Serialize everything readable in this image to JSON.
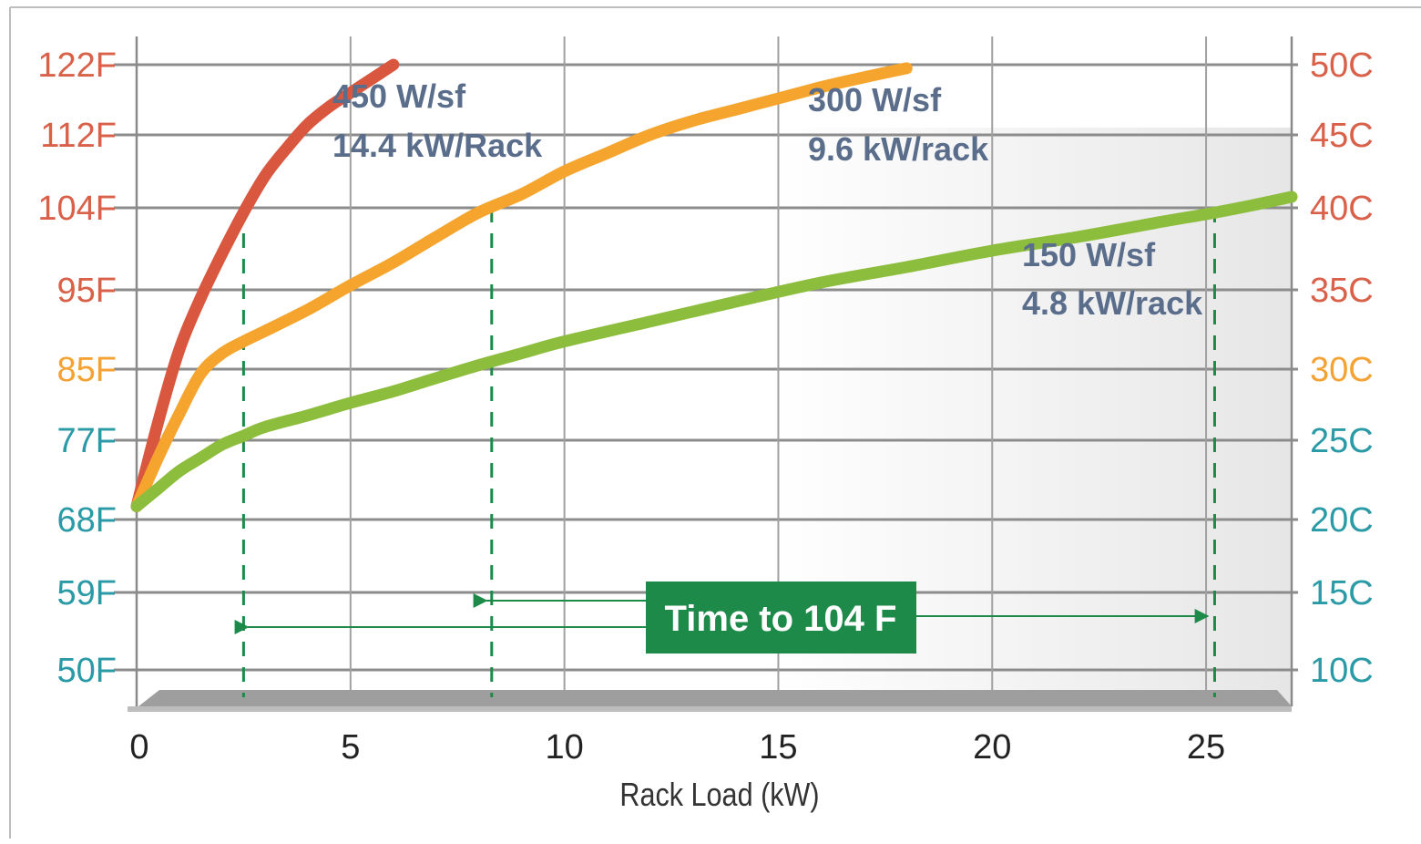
{
  "chart_data": {
    "type": "line",
    "xlabel": "Rack Load (kW)",
    "x_ticks": [
      "0",
      "5",
      "10",
      "15",
      "20",
      "25"
    ],
    "xlim": [
      0,
      27
    ],
    "ylim_F": [
      50,
      122
    ],
    "y_ticks_left": [
      {
        "value": 122,
        "label": "122F",
        "color": "#d9614a"
      },
      {
        "value": 112,
        "label": "112F",
        "color": "#d9614a"
      },
      {
        "value": 104,
        "label": "104F",
        "color": "#d9614a"
      },
      {
        "value": 95,
        "label": "95F",
        "color": "#d9614a"
      },
      {
        "value": 85,
        "label": "85F",
        "color": "#f5a234"
      },
      {
        "value": 77,
        "label": "77F",
        "color": "#2a9aa6"
      },
      {
        "value": 68,
        "label": "68F",
        "color": "#2a9aa6"
      },
      {
        "value": 59,
        "label": "59F",
        "color": "#2a9aa6"
      },
      {
        "value": 50,
        "label": "50F",
        "color": "#2a9aa6"
      }
    ],
    "y_ticks_right": [
      {
        "value": 122,
        "label": "50C",
        "color": "#d9614a"
      },
      {
        "value": 112,
        "label": "45C",
        "color": "#d9614a"
      },
      {
        "value": 104,
        "label": "40C",
        "color": "#d9614a"
      },
      {
        "value": 95,
        "label": "35C",
        "color": "#d9614a"
      },
      {
        "value": 85,
        "label": "30C",
        "color": "#f5a234"
      },
      {
        "value": 77,
        "label": "25C",
        "color": "#2a9aa6"
      },
      {
        "value": 68,
        "label": "20C",
        "color": "#2a9aa6"
      },
      {
        "value": 59,
        "label": "15C",
        "color": "#2a9aa6"
      },
      {
        "value": 50,
        "label": "10C",
        "color": "#2a9aa6"
      }
    ],
    "grid": true,
    "series": [
      {
        "name": "450 W/sf",
        "label_lines": [
          "450 W/sf",
          "14.4 kW/Rack"
        ],
        "color": "#d9573e",
        "points": [
          [
            0,
            69.5
          ],
          [
            0.5,
            79
          ],
          [
            1,
            87.5
          ],
          [
            1.5,
            94
          ],
          [
            2,
            99
          ],
          [
            2.5,
            103.5
          ],
          [
            3,
            107.5
          ],
          [
            3.5,
            110.5
          ],
          [
            4,
            113.5
          ],
          [
            4.5,
            116
          ],
          [
            5,
            118
          ],
          [
            5.5,
            120
          ],
          [
            6,
            122
          ]
        ]
      },
      {
        "name": "300 W/sf",
        "label_lines": [
          "300 W/sf",
          "9.6 kW/rack"
        ],
        "color": "#f5a52e",
        "points": [
          [
            0,
            69.5
          ],
          [
            0.5,
            75
          ],
          [
            1,
            80
          ],
          [
            1.5,
            84.5
          ],
          [
            2,
            87
          ],
          [
            2.5,
            88.5
          ],
          [
            3,
            89.8
          ],
          [
            4,
            92.5
          ],
          [
            5,
            95.5
          ],
          [
            6,
            98
          ],
          [
            7,
            100.8
          ],
          [
            8,
            103.5
          ],
          [
            9,
            105.5
          ],
          [
            10,
            108
          ],
          [
            11,
            110
          ],
          [
            12,
            112
          ],
          [
            13,
            114
          ],
          [
            14,
            115.6
          ],
          [
            15,
            117.2
          ],
          [
            16,
            118.8
          ],
          [
            17,
            120.2
          ],
          [
            18,
            121.5
          ]
        ]
      },
      {
        "name": "150 W/sf",
        "label_lines": [
          "150 W/sf",
          "4.8 kW/rack"
        ],
        "color": "#8cbd3c",
        "points": [
          [
            0,
            69.5
          ],
          [
            0.5,
            71.5
          ],
          [
            1,
            73.5
          ],
          [
            1.5,
            75
          ],
          [
            2,
            76.5
          ],
          [
            2.5,
            77.5
          ],
          [
            3,
            78.5
          ],
          [
            4,
            79.8
          ],
          [
            5,
            81.2
          ],
          [
            6,
            82.5
          ],
          [
            7,
            84
          ],
          [
            8,
            85.5
          ],
          [
            9,
            87
          ],
          [
            10,
            88.5
          ],
          [
            12,
            91
          ],
          [
            14,
            93.5
          ],
          [
            16,
            95.8
          ],
          [
            18,
            97.5
          ],
          [
            20,
            99.3
          ],
          [
            22,
            100.8
          ],
          [
            24,
            102.5
          ],
          [
            25,
            103.3
          ],
          [
            26,
            104.2
          ],
          [
            27,
            105.2
          ]
        ]
      }
    ],
    "reference_lines": [
      {
        "x": 2.5,
        "y_end": 104
      },
      {
        "x": 8.3,
        "y_end": 104
      },
      {
        "x": 25.2,
        "y_end": 104
      }
    ],
    "annotation": {
      "text": "Time to 104 F",
      "box_color": "#1e8a4a"
    }
  }
}
